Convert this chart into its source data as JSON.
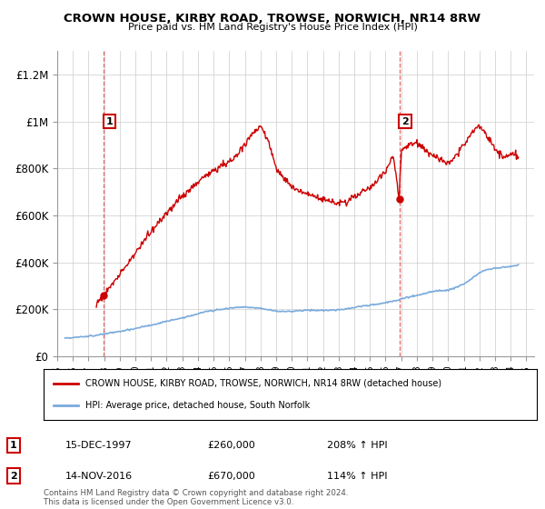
{
  "title": "CROWN HOUSE, KIRBY ROAD, TROWSE, NORWICH, NR14 8RW",
  "subtitle": "Price paid vs. HM Land Registry's House Price Index (HPI)",
  "ylabel_ticks": [
    "£0",
    "£200K",
    "£400K",
    "£600K",
    "£800K",
    "£1M",
    "£1.2M"
  ],
  "ytick_values": [
    0,
    200000,
    400000,
    600000,
    800000,
    1000000,
    1200000
  ],
  "ylim": [
    0,
    1300000
  ],
  "xlim_start": 1995.3,
  "xlim_end": 2025.5,
  "xtick_years": [
    1995,
    1996,
    1997,
    1998,
    1999,
    2000,
    2001,
    2002,
    2003,
    2004,
    2005,
    2006,
    2007,
    2008,
    2009,
    2010,
    2011,
    2012,
    2013,
    2014,
    2015,
    2016,
    2017,
    2018,
    2019,
    2020,
    2021,
    2022,
    2023,
    2024,
    2025
  ],
  "sale1_x": 1997.96,
  "sale1_y": 260000,
  "sale1_label": "1",
  "sale1_date": "15-DEC-1997",
  "sale1_price": "£260,000",
  "sale1_hpi": "208% ↑ HPI",
  "sale2_x": 2016.875,
  "sale2_y": 670000,
  "sale2_label": "2",
  "sale2_date": "14-NOV-2016",
  "sale2_price": "£670,000",
  "sale2_hpi": "114% ↑ HPI",
  "hpi_color": "#7aaadd",
  "sale_color": "#cc0000",
  "dashed_color": "#dd4444",
  "legend1_text": "CROWN HOUSE, KIRBY ROAD, TROWSE, NORWICH, NR14 8RW (detached house)",
  "legend2_text": "HPI: Average price, detached house, South Norfolk",
  "footnote": "Contains HM Land Registry data © Crown copyright and database right 2024.\nThis data is licensed under the Open Government Licence v3.0.",
  "background_color": "#ffffff",
  "grid_color": "#cccccc",
  "hpi_data_x": [
    1995.5,
    1996.0,
    1996.5,
    1997.0,
    1997.5,
    1998.0,
    1998.5,
    1999.0,
    1999.5,
    2000.0,
    2000.5,
    2001.0,
    2001.5,
    2002.0,
    2002.5,
    2003.0,
    2003.5,
    2004.0,
    2004.5,
    2005.0,
    2005.5,
    2006.0,
    2006.5,
    2007.0,
    2007.5,
    2008.0,
    2008.5,
    2009.0,
    2009.5,
    2010.0,
    2010.5,
    2011.0,
    2011.5,
    2012.0,
    2012.5,
    2013.0,
    2013.5,
    2014.0,
    2014.5,
    2015.0,
    2015.5,
    2016.0,
    2016.5,
    2017.0,
    2017.5,
    2018.0,
    2018.5,
    2019.0,
    2019.5,
    2020.0,
    2020.5,
    2021.0,
    2021.5,
    2022.0,
    2022.5,
    2023.0,
    2023.5,
    2024.0,
    2024.5
  ],
  "hpi_data_y": [
    78000,
    80000,
    82000,
    86000,
    90000,
    95000,
    100000,
    106000,
    112000,
    118000,
    126000,
    133000,
    140000,
    148000,
    156000,
    164000,
    172000,
    182000,
    190000,
    196000,
    200000,
    205000,
    208000,
    210000,
    207000,
    204000,
    198000,
    193000,
    190000,
    192000,
    194000,
    196000,
    196000,
    195000,
    196000,
    198000,
    202000,
    208000,
    214000,
    218000,
    222000,
    228000,
    235000,
    244000,
    252000,
    260000,
    268000,
    275000,
    280000,
    282000,
    292000,
    308000,
    330000,
    355000,
    370000,
    375000,
    378000,
    382000,
    390000
  ],
  "prop_data_x": [
    1997.5,
    1997.96,
    1998.2,
    1998.5,
    1999.0,
    1999.5,
    2000.0,
    2000.5,
    2001.0,
    2001.5,
    2002.0,
    2002.5,
    2003.0,
    2003.5,
    2004.0,
    2004.5,
    2005.0,
    2005.5,
    2006.0,
    2006.5,
    2007.0,
    2007.5,
    2008.0,
    2008.5,
    2009.0,
    2009.5,
    2010.0,
    2010.5,
    2011.0,
    2011.5,
    2012.0,
    2012.5,
    2013.0,
    2013.5,
    2014.0,
    2014.5,
    2015.0,
    2015.5,
    2016.0,
    2016.5,
    2016.875,
    2017.0,
    2017.5,
    2018.0,
    2018.5,
    2019.0,
    2019.5,
    2020.0,
    2020.5,
    2021.0,
    2021.5,
    2022.0,
    2022.5,
    2023.0,
    2023.5,
    2024.0,
    2024.5
  ],
  "prop_data_y": [
    220000,
    260000,
    280000,
    310000,
    350000,
    390000,
    440000,
    490000,
    530000,
    570000,
    610000,
    650000,
    680000,
    710000,
    740000,
    770000,
    790000,
    810000,
    830000,
    860000,
    900000,
    950000,
    980000,
    920000,
    800000,
    760000,
    720000,
    700000,
    690000,
    680000,
    670000,
    660000,
    650000,
    660000,
    680000,
    700000,
    720000,
    750000,
    790000,
    850000,
    670000,
    880000,
    900000,
    910000,
    880000,
    850000,
    840000,
    820000,
    850000,
    900000,
    950000,
    980000,
    940000,
    880000,
    850000,
    860000,
    850000
  ]
}
